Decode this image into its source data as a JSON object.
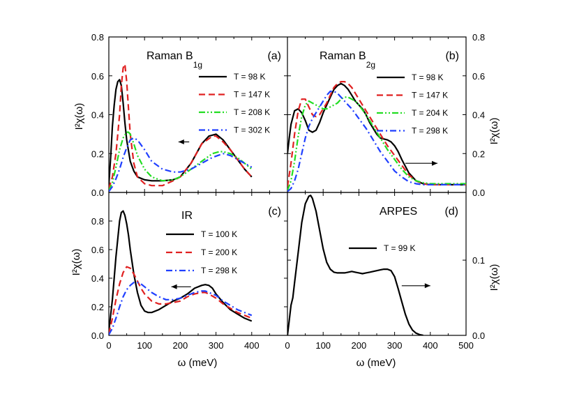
{
  "figure": {
    "x_axis_label": "ω (meV)",
    "y_axis_label": "I²χ(ω)"
  },
  "chart_data": [
    {
      "type": "line",
      "panel": "a",
      "panel_label": "(a)",
      "title_main": "Raman B",
      "title_sub": "1g",
      "title": "Raman B1g",
      "xlabel": "ω (meV)",
      "ylabel": "I²χ(ω)",
      "xlim": [
        0,
        500
      ],
      "ylim": [
        0,
        0.8
      ],
      "y_ticks": [
        0.0,
        0.2,
        0.4,
        0.6,
        0.8
      ],
      "y_tick_labels": [
        "0.0",
        "0.2",
        "0.4",
        "0.6",
        "0.8"
      ],
      "y_axis_side": "left",
      "legend_position": "top-right",
      "arrow": {
        "direction": "left",
        "at_x": 225,
        "x_to": 195,
        "at_y": 0.26
      },
      "series": [
        {
          "name": "T = 98 K",
          "color": "#000000",
          "dash": "solid",
          "x": [
            0,
            5,
            10,
            15,
            20,
            25,
            30,
            35,
            40,
            45,
            50,
            60,
            70,
            80,
            100,
            120,
            150,
            180,
            200,
            230,
            260,
            280,
            300,
            320,
            340,
            360,
            380,
            400
          ],
          "y": [
            0.04,
            0.18,
            0.34,
            0.45,
            0.53,
            0.57,
            0.58,
            0.55,
            0.46,
            0.36,
            0.27,
            0.16,
            0.11,
            0.08,
            0.065,
            0.06,
            0.06,
            0.065,
            0.08,
            0.15,
            0.25,
            0.29,
            0.3,
            0.27,
            0.22,
            0.17,
            0.12,
            0.08
          ]
        },
        {
          "name": "T = 147 K",
          "color": "#e02020",
          "dash": "dash",
          "x": [
            0,
            10,
            20,
            30,
            35,
            40,
            45,
            50,
            55,
            60,
            70,
            80,
            100,
            120,
            150,
            180,
            200,
            230,
            260,
            290,
            300,
            320,
            340,
            360,
            380,
            400
          ],
          "y": [
            0.02,
            0.08,
            0.2,
            0.4,
            0.55,
            0.64,
            0.66,
            0.57,
            0.43,
            0.3,
            0.15,
            0.08,
            0.045,
            0.035,
            0.035,
            0.06,
            0.08,
            0.15,
            0.25,
            0.29,
            0.29,
            0.26,
            0.22,
            0.17,
            0.12,
            0.08
          ]
        },
        {
          "name": "T = 208 K",
          "color": "#22dd22",
          "dash": "dashdotdot",
          "x": [
            0,
            10,
            20,
            30,
            40,
            50,
            55,
            60,
            70,
            80,
            100,
            120,
            150,
            180,
            200,
            230,
            260,
            290,
            310,
            320,
            340,
            360,
            380,
            400
          ],
          "y": [
            0.01,
            0.05,
            0.13,
            0.22,
            0.28,
            0.31,
            0.31,
            0.3,
            0.25,
            0.19,
            0.12,
            0.08,
            0.06,
            0.065,
            0.08,
            0.12,
            0.16,
            0.2,
            0.21,
            0.21,
            0.2,
            0.18,
            0.15,
            0.12
          ]
        },
        {
          "name": "T = 302 K",
          "color": "#1f3fff",
          "dash": "dashdot",
          "x": [
            0,
            10,
            20,
            30,
            40,
            50,
            60,
            70,
            80,
            100,
            120,
            150,
            180,
            200,
            230,
            260,
            290,
            320,
            340,
            360,
            380,
            400
          ],
          "y": [
            0.005,
            0.03,
            0.07,
            0.12,
            0.18,
            0.23,
            0.27,
            0.28,
            0.27,
            0.22,
            0.16,
            0.12,
            0.105,
            0.105,
            0.12,
            0.15,
            0.18,
            0.2,
            0.19,
            0.17,
            0.15,
            0.13
          ]
        }
      ]
    },
    {
      "type": "line",
      "panel": "b",
      "panel_label": "(b)",
      "title_main": "Raman B",
      "title_sub": "2g",
      "title": "Raman B2g",
      "xlabel": "ω (meV)",
      "ylabel": "I²χ(ω)",
      "xlim": [
        0,
        500
      ],
      "ylim": [
        0,
        0.8
      ],
      "y_ticks": [
        0.0,
        0.2,
        0.4,
        0.6,
        0.8
      ],
      "y_tick_labels": [
        "0.0",
        "0.2",
        "0.4",
        "0.6",
        "0.8"
      ],
      "y_axis_side": "right",
      "legend_position": "top-right",
      "arrow": {
        "direction": "right",
        "at_x": 330,
        "x_to": 420,
        "at_y": 0.15
      },
      "series": [
        {
          "name": "T = 98 K",
          "color": "#000000",
          "dash": "solid",
          "x": [
            0,
            5,
            10,
            20,
            30,
            40,
            50,
            60,
            70,
            80,
            90,
            100,
            110,
            120,
            130,
            140,
            150,
            160,
            170,
            180,
            190,
            200,
            210,
            220,
            230,
            240,
            250,
            260,
            270,
            280,
            290,
            300,
            310,
            320,
            340,
            360,
            380,
            400,
            450,
            500
          ],
          "y": [
            0.2,
            0.28,
            0.35,
            0.42,
            0.43,
            0.41,
            0.37,
            0.32,
            0.31,
            0.32,
            0.36,
            0.41,
            0.45,
            0.49,
            0.53,
            0.55,
            0.56,
            0.55,
            0.53,
            0.5,
            0.47,
            0.45,
            0.43,
            0.4,
            0.36,
            0.33,
            0.3,
            0.28,
            0.275,
            0.27,
            0.26,
            0.24,
            0.21,
            0.17,
            0.1,
            0.06,
            0.045,
            0.04,
            0.04,
            0.04
          ]
        },
        {
          "name": "T = 147 K",
          "color": "#e02020",
          "dash": "dash",
          "x": [
            0,
            10,
            20,
            30,
            40,
            50,
            60,
            70,
            80,
            90,
            100,
            110,
            120,
            130,
            140,
            150,
            160,
            170,
            180,
            190,
            200,
            210,
            220,
            240,
            260,
            280,
            300,
            320,
            340,
            360,
            380,
            400,
            450,
            500
          ],
          "y": [
            0.03,
            0.15,
            0.3,
            0.42,
            0.48,
            0.48,
            0.44,
            0.4,
            0.39,
            0.4,
            0.43,
            0.46,
            0.5,
            0.54,
            0.56,
            0.57,
            0.57,
            0.56,
            0.54,
            0.51,
            0.48,
            0.45,
            0.42,
            0.36,
            0.3,
            0.24,
            0.19,
            0.14,
            0.09,
            0.06,
            0.045,
            0.04,
            0.04,
            0.04
          ]
        },
        {
          "name": "T = 204 K",
          "color": "#22dd22",
          "dash": "dashdotdot",
          "x": [
            0,
            10,
            20,
            30,
            40,
            50,
            60,
            70,
            80,
            90,
            100,
            110,
            120,
            130,
            140,
            150,
            160,
            170,
            180,
            190,
            200,
            220,
            240,
            260,
            280,
            300,
            320,
            340,
            360,
            380,
            400,
            450,
            500
          ],
          "y": [
            0.01,
            0.06,
            0.16,
            0.29,
            0.39,
            0.45,
            0.47,
            0.46,
            0.45,
            0.44,
            0.43,
            0.43,
            0.44,
            0.45,
            0.46,
            0.48,
            0.49,
            0.49,
            0.48,
            0.47,
            0.45,
            0.4,
            0.34,
            0.28,
            0.22,
            0.17,
            0.12,
            0.08,
            0.06,
            0.05,
            0.045,
            0.045,
            0.045
          ]
        },
        {
          "name": "T = 298 K",
          "color": "#1f3fff",
          "dash": "dashdot",
          "x": [
            0,
            10,
            20,
            30,
            40,
            50,
            60,
            70,
            80,
            90,
            100,
            110,
            120,
            130,
            140,
            150,
            160,
            170,
            180,
            200,
            220,
            240,
            260,
            280,
            300,
            320,
            340,
            360,
            380,
            400,
            450,
            500
          ],
          "y": [
            0.005,
            0.02,
            0.06,
            0.12,
            0.2,
            0.28,
            0.34,
            0.38,
            0.41,
            0.44,
            0.47,
            0.5,
            0.52,
            0.52,
            0.51,
            0.49,
            0.47,
            0.45,
            0.43,
            0.38,
            0.33,
            0.27,
            0.21,
            0.16,
            0.11,
            0.08,
            0.055,
            0.045,
            0.04,
            0.04,
            0.04,
            0.04
          ]
        }
      ]
    },
    {
      "type": "line",
      "panel": "c",
      "panel_label": "(c)",
      "title": "IR",
      "xlabel": "ω (meV)",
      "ylabel": "I²χ(ω)",
      "xlim": [
        0,
        500
      ],
      "ylim": [
        0,
        1.0
      ],
      "x_ticks": [
        0,
        100,
        200,
        300,
        400
      ],
      "x_tick_labels": [
        "0",
        "100",
        "200",
        "300",
        "400"
      ],
      "y_ticks": [
        0.0,
        0.2,
        0.4,
        0.6,
        0.8
      ],
      "y_tick_labels": [
        "0.0",
        "0.2",
        "0.4",
        "0.6",
        "0.8"
      ],
      "y_axis_side": "left",
      "legend_position": "top-right",
      "arrow": {
        "direction": "left",
        "at_x": 230,
        "x_to": 175,
        "at_y": 0.34
      },
      "series": [
        {
          "name": "T = 100 K",
          "color": "#000000",
          "dash": "solid",
          "x": [
            0,
            10,
            20,
            30,
            35,
            40,
            45,
            50,
            55,
            60,
            70,
            80,
            90,
            100,
            110,
            120,
            140,
            160,
            180,
            200,
            220,
            240,
            260,
            270,
            280,
            290,
            300,
            320,
            340,
            360,
            380,
            400
          ],
          "y": [
            0.03,
            0.25,
            0.55,
            0.8,
            0.86,
            0.87,
            0.84,
            0.78,
            0.7,
            0.6,
            0.43,
            0.3,
            0.21,
            0.17,
            0.16,
            0.16,
            0.18,
            0.21,
            0.24,
            0.26,
            0.29,
            0.33,
            0.35,
            0.355,
            0.35,
            0.33,
            0.29,
            0.23,
            0.18,
            0.15,
            0.12,
            0.1
          ]
        },
        {
          "name": "T = 200 K",
          "color": "#e02020",
          "dash": "dash",
          "x": [
            0,
            10,
            20,
            30,
            40,
            50,
            60,
            70,
            80,
            90,
            100,
            120,
            140,
            160,
            180,
            200,
            220,
            240,
            260,
            270,
            280,
            300,
            320,
            340,
            360,
            380,
            400
          ],
          "y": [
            0.01,
            0.12,
            0.25,
            0.36,
            0.44,
            0.48,
            0.47,
            0.43,
            0.38,
            0.33,
            0.29,
            0.24,
            0.22,
            0.22,
            0.23,
            0.24,
            0.27,
            0.29,
            0.3,
            0.3,
            0.29,
            0.26,
            0.22,
            0.19,
            0.16,
            0.14,
            0.12
          ]
        },
        {
          "name": "T = 298 K",
          "color": "#1f3fff",
          "dash": "dashdot",
          "x": [
            0,
            10,
            20,
            30,
            40,
            50,
            60,
            70,
            80,
            90,
            100,
            110,
            120,
            140,
            160,
            180,
            200,
            220,
            240,
            260,
            270,
            280,
            300,
            320,
            340,
            360,
            380,
            400
          ],
          "y": [
            0.005,
            0.05,
            0.12,
            0.2,
            0.27,
            0.32,
            0.35,
            0.37,
            0.37,
            0.36,
            0.34,
            0.32,
            0.3,
            0.27,
            0.25,
            0.25,
            0.26,
            0.28,
            0.3,
            0.31,
            0.31,
            0.3,
            0.28,
            0.24,
            0.21,
            0.18,
            0.16,
            0.14
          ]
        }
      ]
    },
    {
      "type": "line",
      "panel": "d",
      "panel_label": "(d)",
      "title": "ARPES",
      "xlabel": "ω (meV)",
      "ylabel": "I²χ(ω)",
      "xlim": [
        0,
        500
      ],
      "ylim": [
        0,
        0.19
      ],
      "x_ticks": [
        0,
        100,
        200,
        300,
        400,
        500
      ],
      "x_tick_labels": [
        "0",
        "100",
        "200",
        "300",
        "400",
        "500"
      ],
      "y_ticks": [
        0.0,
        0.1
      ],
      "y_tick_labels": [
        "0.0",
        "0.1"
      ],
      "y_axis_side": "right",
      "legend_position": "center",
      "arrow": {
        "direction": "right",
        "at_x": 320,
        "x_to": 400,
        "at_y": 0.066
      },
      "series": [
        {
          "name": "T = 99 K",
          "color": "#000000",
          "dash": "solid",
          "x": [
            0,
            5,
            10,
            15,
            20,
            30,
            40,
            50,
            60,
            65,
            70,
            80,
            90,
            100,
            110,
            120,
            130,
            140,
            150,
            160,
            170,
            180,
            190,
            200,
            210,
            220,
            230,
            240,
            250,
            260,
            270,
            280,
            290,
            300,
            310,
            320,
            330,
            340,
            350,
            360,
            370,
            380
          ],
          "y": [
            0.0,
            0.02,
            0.04,
            0.05,
            0.07,
            0.11,
            0.15,
            0.175,
            0.185,
            0.186,
            0.182,
            0.165,
            0.14,
            0.115,
            0.097,
            0.088,
            0.084,
            0.083,
            0.083,
            0.083,
            0.084,
            0.085,
            0.084,
            0.083,
            0.082,
            0.083,
            0.084,
            0.085,
            0.086,
            0.087,
            0.088,
            0.088,
            0.086,
            0.078,
            0.062,
            0.045,
            0.028,
            0.015,
            0.007,
            0.003,
            0.001,
            0.0
          ]
        }
      ]
    }
  ]
}
